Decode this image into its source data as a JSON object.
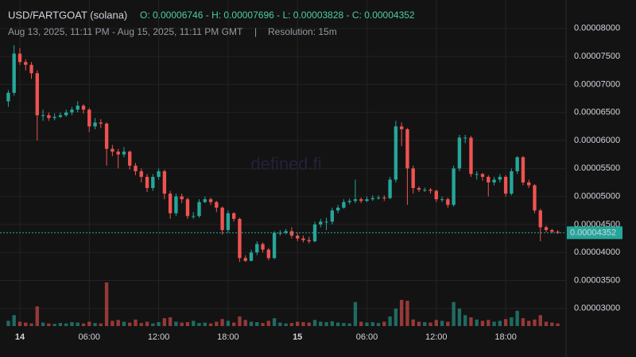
{
  "chart_data": {
    "type": "candlestick",
    "title": "USD/FARTGOAT (solana)",
    "ohlc_text": "O: 0.00006746 - H: 0.00007696 - L: 0.00003828 - C: 0.00004352",
    "subtitle": "Aug 13, 2025, 11:11 PM - Aug 15, 2025, 11:11 PM GMT",
    "separator": "|",
    "resolution": "Resolution: 15m",
    "watermark": "defined.fi",
    "up_color": "#26a69a",
    "down_color": "#ef5350",
    "x": [
      "2025-08-13T23:00",
      "2025-08-13T23:30",
      "2025-08-14T00:00",
      "2025-08-14T00:30",
      "2025-08-14T01:00",
      "2025-08-14T01:30",
      "2025-08-14T02:00",
      "2025-08-14T02:30",
      "2025-08-14T03:00",
      "2025-08-14T03:30",
      "2025-08-14T04:00",
      "2025-08-14T04:30",
      "2025-08-14T05:00",
      "2025-08-14T05:30",
      "2025-08-14T06:00",
      "2025-08-14T06:30",
      "2025-08-14T07:00",
      "2025-08-14T07:30",
      "2025-08-14T08:00",
      "2025-08-14T08:30",
      "2025-08-14T09:00",
      "2025-08-14T09:30",
      "2025-08-14T10:00",
      "2025-08-14T10:30",
      "2025-08-14T11:00",
      "2025-08-14T11:30",
      "2025-08-14T12:00",
      "2025-08-14T12:30",
      "2025-08-14T13:00",
      "2025-08-14T13:30",
      "2025-08-14T14:00",
      "2025-08-14T14:30",
      "2025-08-14T15:00",
      "2025-08-14T15:30",
      "2025-08-14T16:00",
      "2025-08-14T16:30",
      "2025-08-14T17:00",
      "2025-08-14T17:30",
      "2025-08-14T18:00",
      "2025-08-14T18:30",
      "2025-08-14T19:00",
      "2025-08-14T19:30",
      "2025-08-14T20:00",
      "2025-08-14T20:30",
      "2025-08-14T21:00",
      "2025-08-14T21:30",
      "2025-08-14T22:00",
      "2025-08-14T22:30",
      "2025-08-14T23:00",
      "2025-08-14T23:30",
      "2025-08-15T00:00",
      "2025-08-15T00:30",
      "2025-08-15T01:00",
      "2025-08-15T01:30",
      "2025-08-15T02:00",
      "2025-08-15T02:30",
      "2025-08-15T03:00",
      "2025-08-15T03:30",
      "2025-08-15T04:00",
      "2025-08-15T04:30",
      "2025-08-15T05:00",
      "2025-08-15T05:30",
      "2025-08-15T06:00",
      "2025-08-15T06:30",
      "2025-08-15T07:00",
      "2025-08-15T07:30",
      "2025-08-15T08:00",
      "2025-08-15T08:30",
      "2025-08-15T09:00",
      "2025-08-15T09:30",
      "2025-08-15T10:00",
      "2025-08-15T10:30",
      "2025-08-15T11:00",
      "2025-08-15T11:30",
      "2025-08-15T12:00",
      "2025-08-15T12:30",
      "2025-08-15T13:00",
      "2025-08-15T13:30",
      "2025-08-15T14:00",
      "2025-08-15T14:30",
      "2025-08-15T15:00",
      "2025-08-15T15:30",
      "2025-08-15T16:00",
      "2025-08-15T16:30",
      "2025-08-15T17:00",
      "2025-08-15T17:30",
      "2025-08-15T18:00",
      "2025-08-15T18:30",
      "2025-08-15T19:00",
      "2025-08-15T19:30",
      "2025-08-15T20:00",
      "2025-08-15T20:30",
      "2025-08-15T21:00",
      "2025-08-15T21:30",
      "2025-08-15T22:00",
      "2025-08-15T22:30"
    ],
    "open": [
      6.7e-05,
      6.85e-05,
      7.55e-05,
      7.4e-05,
      7.35e-05,
      7.2e-05,
      6.45e-05,
      6.45e-05,
      6.4e-05,
      6.42e-05,
      6.45e-05,
      6.5e-05,
      6.55e-05,
      6.62e-05,
      6.55e-05,
      6.25e-05,
      6.32e-05,
      6.3e-05,
      5.85e-05,
      5.8e-05,
      5.75e-05,
      5.8e-05,
      5.55e-05,
      5.45e-05,
      5.35e-05,
      5.15e-05,
      5.35e-05,
      5.45e-05,
      5.05e-05,
      4.7e-05,
      5e-05,
      4.95e-05,
      4.65e-05,
      4.65e-05,
      4.9e-05,
      4.95e-05,
      4.9e-05,
      4.8e-05,
      4.4e-05,
      4.7e-05,
      4.6e-05,
      3.9e-05,
      3.85e-05,
      4e-05,
      4.15e-05,
      4.05e-05,
      3.9e-05,
      4.35e-05,
      4.35e-05,
      4.38e-05,
      4.3e-05,
      4.25e-05,
      4.22e-05,
      4.2e-05,
      4.5e-05,
      4.55e-05,
      4.55e-05,
      4.75e-05,
      4.8e-05,
      4.9e-05,
      4.92e-05,
      4.95e-05,
      4.92e-05,
      4.95e-05,
      4.97e-05,
      4.98e-05,
      4.97e-05,
      5.3e-05,
      6.25e-05,
      6.2e-05,
      5.5e-05,
      5.15e-05,
      5.12e-05,
      5.12e-05,
      5.1e-05,
      4.95e-05,
      4.95e-05,
      4.85e-05,
      5.5e-05,
      6.05e-05,
      6.05e-05,
      5.4e-05,
      5.4e-05,
      5.35e-05,
      5.25e-05,
      5.3e-05,
      5.35e-05,
      5.05e-05,
      5.45e-05,
      5.7e-05,
      5.25e-05,
      5.2e-05,
      4.75e-05,
      4.45e-05,
      4.4e-05,
      4.37e-05
    ],
    "high": [
      6.9e-05,
      7.7e-05,
      7.65e-05,
      7.45e-05,
      7.4e-05,
      7.25e-05,
      6.55e-05,
      6.5e-05,
      6.48e-05,
      6.5e-05,
      6.55e-05,
      6.6e-05,
      6.7e-05,
      6.65e-05,
      6.58e-05,
      6.4e-05,
      6.38e-05,
      6.32e-05,
      5.92e-05,
      5.85e-05,
      5.88e-05,
      5.82e-05,
      5.6e-05,
      5.5e-05,
      5.4e-05,
      5.4e-05,
      5.5e-05,
      5.48e-05,
      5.1e-05,
      5.05e-05,
      5.05e-05,
      4.98e-05,
      4.72e-05,
      4.95e-05,
      5e-05,
      4.98e-05,
      4.92e-05,
      4.82e-05,
      4.75e-05,
      4.72e-05,
      4.62e-05,
      3.95e-05,
      4.05e-05,
      4.2e-05,
      4.18e-05,
      4.08e-05,
      4.38e-05,
      4.4e-05,
      4.42e-05,
      4.45e-05,
      4.35e-05,
      4.3e-05,
      4.28e-05,
      4.55e-05,
      4.6e-05,
      4.62e-05,
      4.8e-05,
      4.85e-05,
      4.95e-05,
      4.96e-05,
      5.3e-05,
      4.98e-05,
      5e-05,
      5.02e-05,
      5.02e-05,
      5.02e-05,
      5.35e-05,
      6.35e-05,
      6.32e-05,
      6.22e-05,
      5.55e-05,
      5.18e-05,
      5.16e-05,
      5.15e-05,
      5.12e-05,
      5e-05,
      4.98e-05,
      5.55e-05,
      6.1e-05,
      6.1e-05,
      6.08e-05,
      5.45e-05,
      5.42e-05,
      5.38e-05,
      5.35e-05,
      5.4e-05,
      5.38e-05,
      5.5e-05,
      5.72e-05,
      5.72e-05,
      5.3e-05,
      5.22e-05,
      4.78e-05,
      4.48e-05,
      4.42e-05,
      4.4e-05
    ],
    "low": [
      6.6e-05,
      6.8e-05,
      7.35e-05,
      7.25e-05,
      7.1e-05,
      6e-05,
      6.35e-05,
      6.35e-05,
      6.36e-05,
      6.4e-05,
      6.42e-05,
      6.45e-05,
      6.5e-05,
      6.48e-05,
      6.15e-05,
      6.2e-05,
      6.22e-05,
      5.55e-05,
      5.72e-05,
      5.5e-05,
      5.7e-05,
      5.48e-05,
      5.38e-05,
      5.25e-05,
      5.08e-05,
      5.1e-05,
      5.3e-05,
      4.95e-05,
      4.6e-05,
      4.65e-05,
      4.88e-05,
      4.6e-05,
      4.6e-05,
      4.62e-05,
      4.88e-05,
      4.85e-05,
      4.72e-05,
      4.32e-05,
      4.35e-05,
      4.55e-05,
      3.83e-05,
      3.83e-05,
      3.84e-05,
      3.95e-05,
      4e-05,
      3.86e-05,
      3.88e-05,
      4.3e-05,
      4.32e-05,
      4.25e-05,
      4.2e-05,
      4.18e-05,
      4.16e-05,
      4.18e-05,
      4.45e-05,
      4.4e-05,
      4.5e-05,
      4.7e-05,
      4.78e-05,
      4.86e-05,
      4.88e-05,
      4.88e-05,
      4.9e-05,
      4.92e-05,
      4.94e-05,
      4.92e-05,
      4.95e-05,
      5.25e-05,
      5.9e-05,
      4.85e-05,
      5.05e-05,
      5.08e-05,
      5.08e-05,
      5.05e-05,
      4.9e-05,
      4.9e-05,
      4.8e-05,
      4.82e-05,
      5.45e-05,
      5.95e-05,
      5.35e-05,
      5.3e-05,
      5.28e-05,
      5e-05,
      5.2e-05,
      5.25e-05,
      5e-05,
      5.02e-05,
      5.4e-05,
      5.2e-05,
      5.15e-05,
      4.7e-05,
      4.2e-05,
      4.36e-05,
      4.34e-05,
      4.33e-05
    ],
    "close": [
      6.85e-05,
      7.55e-05,
      7.4e-05,
      7.35e-05,
      7.2e-05,
      6.45e-05,
      6.45e-05,
      6.4e-05,
      6.42e-05,
      6.45e-05,
      6.5e-05,
      6.55e-05,
      6.62e-05,
      6.55e-05,
      6.25e-05,
      6.32e-05,
      6.3e-05,
      5.85e-05,
      5.8e-05,
      5.75e-05,
      5.8e-05,
      5.55e-05,
      5.45e-05,
      5.35e-05,
      5.15e-05,
      5.35e-05,
      5.45e-05,
      5.05e-05,
      4.7e-05,
      5e-05,
      4.95e-05,
      4.65e-05,
      4.65e-05,
      4.9e-05,
      4.95e-05,
      4.9e-05,
      4.8e-05,
      4.4e-05,
      4.7e-05,
      4.6e-05,
      3.9e-05,
      3.85e-05,
      4e-05,
      4.15e-05,
      4.05e-05,
      3.9e-05,
      4.35e-05,
      4.35e-05,
      4.38e-05,
      4.3e-05,
      4.25e-05,
      4.22e-05,
      4.2e-05,
      4.5e-05,
      4.55e-05,
      4.55e-05,
      4.75e-05,
      4.8e-05,
      4.9e-05,
      4.92e-05,
      4.95e-05,
      4.92e-05,
      4.95e-05,
      4.97e-05,
      4.98e-05,
      4.97e-05,
      5.3e-05,
      6.25e-05,
      6.2e-05,
      5.5e-05,
      5.15e-05,
      5.12e-05,
      5.12e-05,
      5.1e-05,
      4.95e-05,
      4.95e-05,
      4.85e-05,
      5.5e-05,
      6.05e-05,
      6.05e-05,
      5.4e-05,
      5.4e-05,
      5.35e-05,
      5.25e-05,
      5.3e-05,
      5.35e-05,
      5.05e-05,
      5.45e-05,
      5.7e-05,
      5.25e-05,
      5.2e-05,
      4.75e-05,
      4.45e-05,
      4.4e-05,
      4.37e-05,
      4.352e-05
    ],
    "volume": [
      12,
      25,
      10,
      8,
      6,
      45,
      8,
      6,
      5,
      7,
      6,
      9,
      8,
      6,
      10,
      7,
      6,
      100,
      12,
      14,
      10,
      8,
      15,
      7,
      10,
      6,
      9,
      18,
      20,
      10,
      8,
      9,
      12,
      7,
      8,
      6,
      10,
      16,
      12,
      8,
      22,
      14,
      10,
      9,
      7,
      12,
      18,
      8,
      6,
      7,
      10,
      9,
      8,
      14,
      10,
      9,
      11,
      8,
      7,
      6,
      55,
      10,
      8,
      9,
      7,
      10,
      22,
      40,
      60,
      58,
      15,
      10,
      9,
      8,
      14,
      12,
      10,
      55,
      40,
      25,
      20,
      15,
      12,
      14,
      10,
      12,
      16,
      20,
      35,
      18,
      12,
      15,
      25,
      10,
      8,
      6
    ],
    "vlim": [
      0,
      100
    ],
    "xlim": [
      "2025-08-13T22:17",
      "2025-08-15T23:13"
    ],
    "xticks": [
      {
        "value": "2025-08-14T00:00",
        "label": "14"
      },
      {
        "value": "2025-08-14T06:00",
        "label": "06:00"
      },
      {
        "value": "2025-08-14T12:00",
        "label": "12:00"
      },
      {
        "value": "2025-08-14T18:00",
        "label": "18:00"
      },
      {
        "value": "2025-08-15T00:00",
        "label": "15"
      },
      {
        "value": "2025-08-15T06:00",
        "label": "06:00"
      },
      {
        "value": "2025-08-15T12:00",
        "label": "12:00"
      },
      {
        "value": "2025-08-15T18:00",
        "label": "18:00"
      }
    ],
    "ylim": [
      2.7e-05,
      8.38e-05
    ],
    "yticks": [
      {
        "value": 3e-05,
        "label": "0.00003000"
      },
      {
        "value": 3.5e-05,
        "label": "0.00003500"
      },
      {
        "value": 4e-05,
        "label": "0.00004000"
      },
      {
        "value": 4.5e-05,
        "label": "0.00004500"
      },
      {
        "value": 5e-05,
        "label": "0.00005000"
      },
      {
        "value": 5.5e-05,
        "label": "0.00005500"
      },
      {
        "value": 6e-05,
        "label": "0.00006000"
      },
      {
        "value": 6.5e-05,
        "label": "0.00006500"
      },
      {
        "value": 7e-05,
        "label": "0.00007000"
      },
      {
        "value": 7.5e-05,
        "label": "0.00007500"
      },
      {
        "value": 8e-05,
        "label": "0.00008000"
      }
    ],
    "grid": true
  }
}
